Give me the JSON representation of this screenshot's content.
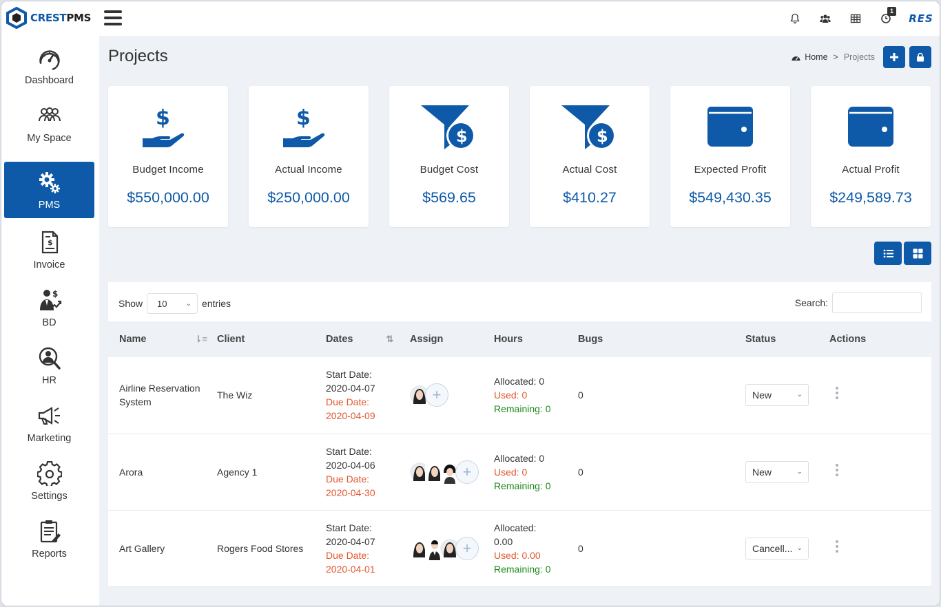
{
  "brand": {
    "name_part1": "CREST",
    "name_part2": "PMS",
    "color": "#0f5aa8"
  },
  "header": {
    "icons": [
      "bell-icon",
      "users-icon",
      "table-icon",
      "clock-icon"
    ],
    "timer_badge": "1",
    "user_initials": "RES"
  },
  "sidebar": {
    "items": [
      {
        "label": "Dashboard",
        "icon": "speedometer-icon"
      },
      {
        "label": "My Space",
        "icon": "team-icon"
      },
      {
        "label": "PMS",
        "icon": "gears-icon",
        "active": true
      },
      {
        "label": "Invoice",
        "icon": "invoice-icon"
      },
      {
        "label": "BD",
        "icon": "business-growth-icon"
      },
      {
        "label": "HR",
        "icon": "hr-search-icon"
      },
      {
        "label": "Marketing",
        "icon": "megaphone-icon"
      },
      {
        "label": "Settings",
        "icon": "gear-icon"
      },
      {
        "label": "Reports",
        "icon": "report-icon"
      }
    ]
  },
  "page": {
    "title": "Projects",
    "breadcrumb": {
      "home": "Home",
      "separator": ">",
      "current": "Projects"
    }
  },
  "stats": [
    {
      "label": "Budget Income",
      "value": "$550,000.00",
      "icon": "hand-dollar-icon"
    },
    {
      "label": "Actual Income",
      "value": "$250,000.00",
      "icon": "hand-dollar-icon"
    },
    {
      "label": "Budget Cost",
      "value": "$569.65",
      "icon": "funnel-dollar-icon"
    },
    {
      "label": "Actual Cost",
      "value": "$410.27",
      "icon": "funnel-dollar-icon"
    },
    {
      "label": "Expected Profit",
      "value": "$549,430.35",
      "icon": "wallet-icon"
    },
    {
      "label": "Actual Profit",
      "value": "$249,589.73",
      "icon": "wallet-icon"
    }
  ],
  "table": {
    "show_label": "Show",
    "entries_value": "10",
    "entries_label": "entries",
    "search_label": "Search:",
    "search_value": "",
    "columns": [
      "Name",
      "Client",
      "Dates",
      "Assign",
      "Hours",
      "Bugs",
      "Status",
      "Actions"
    ],
    "start_label": "Start Date:",
    "due_label": "Due Date:",
    "allocated_label": "Allocated:",
    "used_label": "Used:",
    "remaining_label": "Remaining:",
    "rows": [
      {
        "name": "Airline Reservation System",
        "client": "The Wiz",
        "start_date": "2020-04-07",
        "due_date": "2020-04-09",
        "avatars": 1,
        "allocated": "Allocated: 0",
        "used": "Used: 0",
        "remaining": "Remaining: 0",
        "bugs": "0",
        "status": "New"
      },
      {
        "name": "Arora",
        "client": "Agency 1",
        "start_date": "2020-04-06",
        "due_date": "2020-04-30",
        "avatars": 3,
        "allocated": "Allocated: 0",
        "used": "Used: 0",
        "remaining": "Remaining: 0",
        "bugs": "0",
        "status": "New"
      },
      {
        "name": "Art Gallery",
        "client": "Rogers Food Stores",
        "start_date": "2020-04-07",
        "due_date": "2020-04-01",
        "avatars": 3,
        "allocated": "Allocated: 0.00",
        "used": "Used: 0.00",
        "remaining": "Remaining: 0",
        "bugs": "0",
        "status": "Cancell..."
      }
    ]
  }
}
